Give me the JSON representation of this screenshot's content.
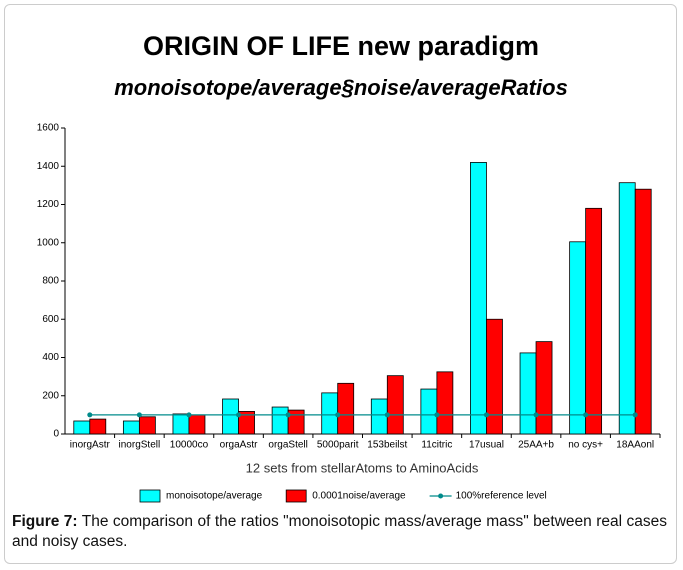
{
  "chart_data": {
    "type": "bar",
    "title": "ORIGIN OF LIFE new paradigm",
    "subtitle": "monoisotope/average§noise/averageRatios",
    "x_label": "12 sets from stellarAtoms to AminoAcids",
    "categories": [
      "inorgAstr",
      "inorgStell",
      "10000co",
      "orgaAstr",
      "orgaStell",
      "5000parit",
      "153beilst",
      "11citric",
      "17usual",
      "25AA+b",
      "no cys+",
      "18AAonl"
    ],
    "series": [
      {
        "name": "monoisotope/average",
        "color": "#00ffff",
        "values": [
          68,
          68,
          105,
          183,
          141,
          215,
          183,
          235,
          1420,
          424,
          1005,
          1314
        ]
      },
      {
        "name": "0.0001noise/average",
        "color": "#ff0000",
        "values": [
          78,
          90,
          100,
          118,
          125,
          265,
          305,
          325,
          600,
          483,
          1180,
          1280
        ]
      },
      {
        "name": "100%reference level",
        "color": "#008b8b",
        "type": "line",
        "values": [
          100,
          100,
          100,
          100,
          100,
          100,
          100,
          100,
          100,
          100,
          100,
          100
        ]
      }
    ],
    "ylim": [
      0,
      1600
    ],
    "yticks": [
      0,
      200,
      400,
      600,
      800,
      1000,
      1200,
      1400,
      1600
    ],
    "grid": false,
    "legend": "bottom",
    "caption": {
      "label": "Figure 7:",
      "text": " The comparison of the ratios \"monoisotopic mass/average mass\" between real cases and noisy cases."
    }
  }
}
